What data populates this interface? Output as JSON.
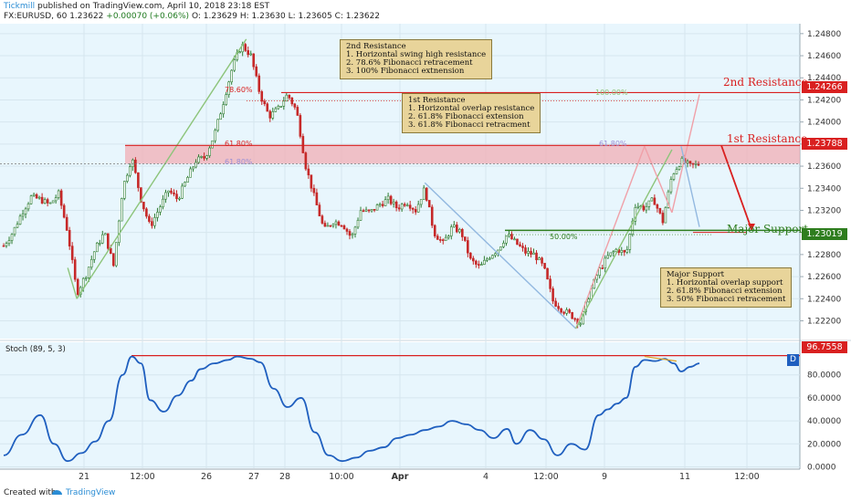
{
  "header": {
    "publisher": "Tickmill",
    "published_text": "published on TradingView.com, April 10, 2018 23:18 EST",
    "symbol_line": "FX:EURUSD, 60",
    "last": "1.23622",
    "change": "+0.00070 (+0.06%)",
    "ohlc": {
      "o": "O: 1.23629",
      "h": "H: 1.23630",
      "l": "L: 1.23605",
      "c": "C: 1.23622"
    }
  },
  "footer": {
    "created_with": "Created with",
    "brand": "TradingView"
  },
  "colors": {
    "resistance": "#d92020",
    "support": "#2e7d1e",
    "candle_up": "#2e7d32",
    "candle_down": "#c62828",
    "stoch": "#1f5fbf",
    "panel_bg": "#e8f6fd"
  },
  "levels": {
    "second_resistance": {
      "label": "2nd Resistance",
      "price": "1.24266"
    },
    "first_resistance": {
      "label": "1st Resistance",
      "price": "1.23788"
    },
    "major_support": {
      "label": "Major Support",
      "price": "1.23019"
    },
    "stoch_level": "96.7558"
  },
  "annotations": {
    "second_resistance": {
      "title": "2nd Resistance",
      "lines": [
        "1. Horizontal swing high resistance",
        "2. 78.6% Fibonacci retracement",
        "3. 100% Fibonacci extnension"
      ]
    },
    "first_resistance": {
      "title": "1st Resistance",
      "lines": [
        "1. Horizontal overlap resistance",
        "2. 61.8% Fibonacci extension",
        "3. 61.8% Fibonacci retracment"
      ]
    },
    "major_support": {
      "title": "Major Support",
      "lines": [
        "1. Horizontal overlap support",
        "2. 61.8% Fibonacci extension",
        "3. 50% Fibonacci retracement"
      ]
    }
  },
  "fib_labels": [
    "78.60%",
    "61.80%",
    "61.80%",
    "100.00%",
    "61.80%",
    "50.00%"
  ],
  "stoch_label": "Stoch (89, 5, 3)",
  "stoch_badge": "D",
  "chart_data": [
    {
      "type": "candlestick",
      "title": "FX:EURUSD, 60",
      "y_axis_ticks": [
        "1.24800",
        "1.24600",
        "1.24400",
        "1.24200",
        "1.24000",
        "1.23800",
        "1.23600",
        "1.23400",
        "1.23200",
        "1.23000",
        "1.22800",
        "1.22600",
        "1.22400",
        "1.22200"
      ],
      "x_axis_ticks": [
        "21",
        "12:00",
        "26",
        "27",
        "28",
        "10:00",
        "Apr",
        "4",
        "12:00",
        "9",
        "11",
        "12:00"
      ],
      "ylim": [
        1.2208,
        1.2484
      ],
      "horizontal_levels": [
        1.24266,
        1.23788,
        1.23019
      ],
      "close_path": [
        [
          0,
          1.2288
        ],
        [
          10,
          1.23
        ],
        [
          20,
          1.2318
        ],
        [
          30,
          1.2332
        ],
        [
          40,
          1.233
        ],
        [
          50,
          1.2325
        ],
        [
          60,
          1.2335
        ],
        [
          70,
          1.23
        ],
        [
          80,
          1.2245
        ],
        [
          90,
          1.2262
        ],
        [
          100,
          1.2285
        ],
        [
          110,
          1.23
        ],
        [
          120,
          1.227
        ],
        [
          130,
          1.234
        ],
        [
          140,
          1.2368
        ],
        [
          150,
          1.233
        ],
        [
          160,
          1.2305
        ],
        [
          170,
          1.2322
        ],
        [
          180,
          1.2338
        ],
        [
          190,
          1.233
        ],
        [
          200,
          1.2348
        ],
        [
          210,
          1.2365
        ],
        [
          220,
          1.2368
        ],
        [
          230,
          1.2388
        ],
        [
          240,
          1.2418
        ],
        [
          250,
          1.245
        ],
        [
          260,
          1.247
        ],
        [
          270,
          1.246
        ],
        [
          280,
          1.2425
        ],
        [
          290,
          1.2405
        ],
        [
          300,
          1.2412
        ],
        [
          310,
          1.2425
        ],
        [
          320,
          1.241
        ],
        [
          330,
          1.236
        ],
        [
          340,
          1.233
        ],
        [
          350,
          1.2302
        ],
        [
          360,
          1.231
        ],
        [
          370,
          1.2308
        ],
        [
          380,
          1.2295
        ],
        [
          390,
          1.232
        ],
        [
          400,
          1.2318
        ],
        [
          410,
          1.2325
        ],
        [
          420,
          1.233
        ],
        [
          430,
          1.2322
        ],
        [
          440,
          1.2328
        ],
        [
          450,
          1.232
        ],
        [
          460,
          1.234
        ],
        [
          470,
          1.23
        ],
        [
          480,
          1.229
        ],
        [
          490,
          1.2305
        ],
        [
          500,
          1.23
        ],
        [
          510,
          1.2275
        ],
        [
          520,
          1.2268
        ],
        [
          530,
          1.2278
        ],
        [
          540,
          1.2285
        ],
        [
          550,
          1.2298
        ],
        [
          560,
          1.229
        ],
        [
          570,
          1.2282
        ],
        [
          580,
          1.228
        ],
        [
          590,
          1.2268
        ],
        [
          600,
          1.2238
        ],
        [
          610,
          1.223
        ],
        [
          620,
          1.2225
        ],
        [
          630,
          1.2218
        ],
        [
          640,
          1.2245
        ],
        [
          650,
          1.2265
        ],
        [
          660,
          1.2278
        ],
        [
          670,
          1.2285
        ],
        [
          680,
          1.228
        ],
        [
          690,
          1.2325
        ],
        [
          700,
          1.2322
        ],
        [
          710,
          1.233
        ],
        [
          720,
          1.231
        ],
        [
          730,
          1.2352
        ],
        [
          740,
          1.2365
        ],
        [
          750,
          1.236
        ],
        [
          760,
          1.2362
        ]
      ]
    },
    {
      "type": "line",
      "title": "Stoch (89, 5, 3)",
      "y_axis_ticks": [
        "80.0000",
        "60.0000",
        "40.0000",
        "20.0000",
        "0.0000"
      ],
      "ylim": [
        -2,
        106
      ],
      "horizontal_levels": [
        96.7558
      ],
      "series": [
        {
          "name": "Stoch (89, 5, 3)",
          "points": [
            [
              0,
              10
            ],
            [
              20,
              28
            ],
            [
              40,
              45
            ],
            [
              55,
              20
            ],
            [
              70,
              5
            ],
            [
              85,
              12
            ],
            [
              100,
              22
            ],
            [
              115,
              40
            ],
            [
              130,
              80
            ],
            [
              140,
              96
            ],
            [
              150,
              90
            ],
            [
              160,
              58
            ],
            [
              175,
              48
            ],
            [
              190,
              62
            ],
            [
              205,
              75
            ],
            [
              215,
              85
            ],
            [
              230,
              90
            ],
            [
              245,
              93
            ],
            [
              255,
              96
            ],
            [
              270,
              94
            ],
            [
              280,
              91
            ],
            [
              295,
              68
            ],
            [
              310,
              52
            ],
            [
              325,
              60
            ],
            [
              340,
              30
            ],
            [
              355,
              10
            ],
            [
              370,
              5
            ],
            [
              385,
              8
            ],
            [
              400,
              14
            ],
            [
              415,
              17
            ],
            [
              430,
              25
            ],
            [
              445,
              28
            ],
            [
              460,
              32
            ],
            [
              475,
              35
            ],
            [
              490,
              40
            ],
            [
              505,
              37
            ],
            [
              520,
              32
            ],
            [
              535,
              25
            ],
            [
              550,
              33
            ],
            [
              560,
              20
            ],
            [
              575,
              32
            ],
            [
              590,
              24
            ],
            [
              605,
              10
            ],
            [
              620,
              20
            ],
            [
              635,
              15
            ],
            [
              650,
              45
            ],
            [
              660,
              50
            ],
            [
              670,
              55
            ],
            [
              680,
              60
            ],
            [
              690,
              87
            ],
            [
              700,
              93
            ],
            [
              712,
              92
            ],
            [
              722,
              94
            ],
            [
              732,
              90
            ],
            [
              740,
              83
            ],
            [
              750,
              87
            ],
            [
              760,
              90
            ]
          ]
        }
      ]
    }
  ]
}
